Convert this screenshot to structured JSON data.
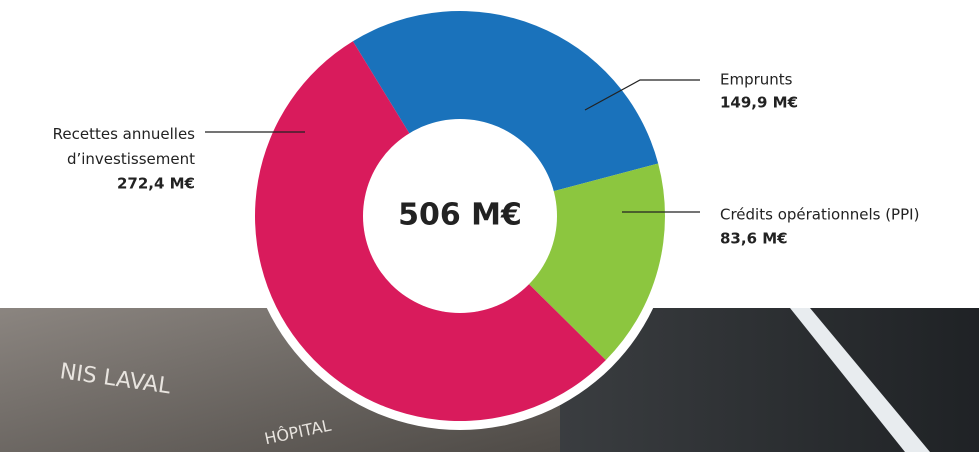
{
  "chart_data": {
    "type": "donut",
    "center_label": "506 M€",
    "categories": [
      "Emprunts",
      "Crédits opérationnels (PPI)",
      "Recettes annuelles d’investissement"
    ],
    "values": [
      149.9,
      83.6,
      272.4
    ],
    "value_labels": [
      "149,9 M€",
      "83,6 M€",
      "272,4 M€"
    ],
    "colors": [
      "#1a72bb",
      "#8cc63f",
      "#d91b5c"
    ]
  },
  "background": {
    "texts": [
      "NIS LAVAL",
      "HÔPITAL"
    ]
  }
}
